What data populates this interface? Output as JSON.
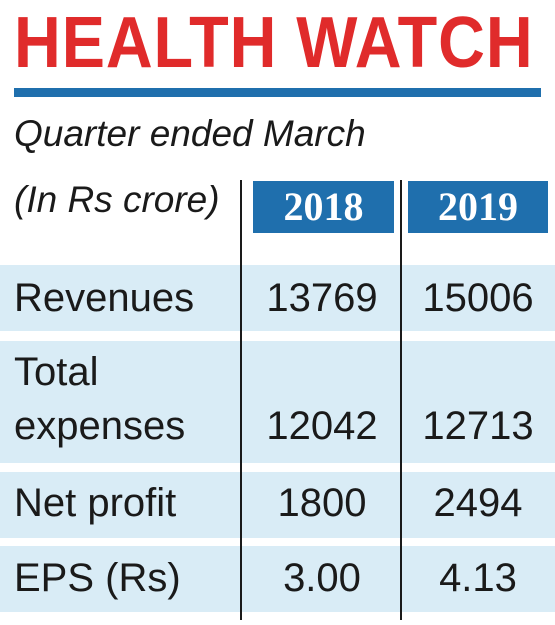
{
  "header": {
    "title": "HEALTH WATCH",
    "subtitle": "Quarter ended March",
    "unit_label": "(In Rs crore)"
  },
  "colors": {
    "title_red": "#e02b2b",
    "accent_blue": "#1f6fad",
    "row_shade": "#d9ecf6"
  },
  "chart_data": {
    "type": "table",
    "title": "HEALTH WATCH",
    "subtitle": "Quarter ended March",
    "unit": "(In Rs crore)",
    "columns": [
      "2018",
      "2019"
    ],
    "rows": [
      {
        "label": "Revenues",
        "values": [
          "13769",
          "15006"
        ]
      },
      {
        "label_line1": "Total",
        "label_line2": "expenses",
        "label": "Total expenses",
        "values": [
          "12042",
          "12713"
        ]
      },
      {
        "label": "Net profit",
        "values": [
          "1800",
          "2494"
        ]
      },
      {
        "label": "EPS (Rs)",
        "values": [
          "3.00",
          "4.13"
        ]
      }
    ]
  }
}
